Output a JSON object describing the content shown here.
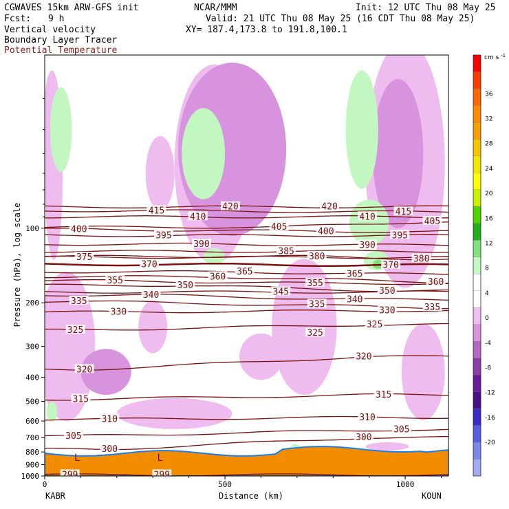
{
  "header": {
    "model": "CGWAVES 15km ARW-GFS init",
    "org": "NCAR/MMM",
    "init": "Init: 12 UTC Thu 08 May 25",
    "fcst_label": "Fcst:",
    "fcst_value": "9 h",
    "valid": "Valid: 21 UTC Thu 08 May 25 (16 CDT Thu 08 May 25)",
    "field1": "Vertical velocity",
    "field2": "Boundary Layer Tracer",
    "field3": "Potential Temperature",
    "xy": "XY= 187.4,173.8 to 191.8,100.1"
  },
  "colors": {
    "theta_contour": "#7a1010",
    "field3_text": "#8b1a1a",
    "tracer_fill": "#f28c00"
  },
  "chart_data": {
    "type": "contour-cross-section",
    "ylabel": "Pressure (hPa), log scale",
    "xlabel": "Distance (km)",
    "x_ticks": [
      0,
      500,
      1000
    ],
    "xlim": [
      0,
      1120
    ],
    "y_ticks": [
      100,
      200,
      300,
      400,
      500,
      600,
      700,
      800,
      900,
      1000
    ],
    "ylim": [
      1000,
      20
    ],
    "y_scale": "log",
    "left_station": "KABR",
    "right_station": "KOUN",
    "colorbar": {
      "units": "cm s",
      "units_exp": "-1",
      "levels": [
        36,
        32,
        28,
        24,
        20,
        16,
        12,
        8,
        4,
        0,
        -4,
        -8,
        -12,
        -16,
        -20
      ],
      "colors": [
        "#ff0000",
        "#ff3c00",
        "#ff6600",
        "#ff8a00",
        "#f5a000",
        "#f7c200",
        "#f4e600",
        "#ffff00",
        "#c8f000",
        "#4ed400",
        "#22b01e",
        "#7fe27f",
        "#c2f7c2",
        "#ffffff",
        "#ffffff",
        "#eebcee",
        "#d793dd",
        "#b567c4",
        "#8c3fa6",
        "#6a1b9a",
        "#4b0f8a",
        "#3c2bc8",
        "#5a5ee0",
        "#7d88ea",
        "#a2aaf2"
      ]
    },
    "isentropes": [
      {
        "theta": 299,
        "labels": [
          [
            70,
            990
          ],
          [
            325,
            990
          ]
        ]
      },
      {
        "theta": 300,
        "labels": [
          [
            180,
            780
          ],
          [
            885,
            700
          ]
        ]
      },
      {
        "theta": 305,
        "labels": [
          [
            80,
            690
          ],
          [
            990,
            650
          ]
        ]
      },
      {
        "theta": 310,
        "labels": [
          [
            180,
            590
          ],
          [
            895,
            580
          ]
        ]
      },
      {
        "theta": 315,
        "labels": [
          [
            100,
            490
          ],
          [
            940,
            470
          ]
        ]
      },
      {
        "theta": 320,
        "labels": [
          [
            110,
            372
          ],
          [
            885,
            330
          ]
        ]
      },
      {
        "theta": 325,
        "labels": [
          [
            85,
            258
          ],
          [
            750,
            265
          ],
          [
            915,
            245
          ]
        ]
      },
      {
        "theta": 330,
        "labels": [
          [
            205,
            218
          ],
          [
            950,
            215
          ]
        ]
      },
      {
        "theta": 335,
        "labels": [
          [
            95,
            197
          ],
          [
            755,
            203
          ],
          [
            1075,
            209
          ]
        ]
      },
      {
        "theta": 340,
        "labels": [
          [
            295,
            186
          ],
          [
            860,
            194
          ]
        ]
      },
      {
        "theta": 345,
        "labels": [
          [
            655,
            181
          ]
        ]
      },
      {
        "theta": 350,
        "labels": [
          [
            390,
            170
          ],
          [
            950,
            179
          ]
        ]
      },
      {
        "theta": 355,
        "labels": [
          [
            195,
            163
          ],
          [
            750,
            167
          ]
        ]
      },
      {
        "theta": 360,
        "labels": [
          [
            480,
            157
          ],
          [
            1085,
            165
          ]
        ]
      },
      {
        "theta": 365,
        "labels": [
          [
            555,
            150
          ],
          [
            860,
            153
          ]
        ]
      },
      {
        "theta": 370,
        "labels": [
          [
            290,
            140
          ],
          [
            960,
            141
          ]
        ]
      },
      {
        "theta": 375,
        "labels": [
          [
            110,
            131
          ]
        ]
      },
      {
        "theta": 380,
        "labels": [
          [
            755,
            130
          ],
          [
            1045,
            133
          ]
        ]
      },
      {
        "theta": 385,
        "labels": [
          [
            670,
            124
          ]
        ]
      },
      {
        "theta": 390,
        "labels": [
          [
            435,
            116
          ],
          [
            895,
            117
          ]
        ]
      },
      {
        "theta": 395,
        "labels": [
          [
            330,
            107
          ],
          [
            985,
            107
          ]
        ]
      },
      {
        "theta": 400,
        "labels": [
          [
            95,
            101
          ],
          [
            780,
            103
          ]
        ]
      },
      {
        "theta": 405,
        "labels": [
          [
            650,
            99
          ],
          [
            1075,
            94
          ]
        ]
      },
      {
        "theta": 410,
        "labels": [
          [
            425,
            90
          ],
          [
            895,
            90
          ]
        ]
      },
      {
        "theta": 415,
        "labels": [
          [
            310,
            85
          ],
          [
            995,
            86
          ]
        ]
      },
      {
        "theta": 420,
        "labels": [
          [
            515,
            82
          ],
          [
            790,
            82
          ]
        ]
      }
    ],
    "lows": [
      [
        90,
        870
      ],
      [
        320,
        870
      ]
    ]
  }
}
